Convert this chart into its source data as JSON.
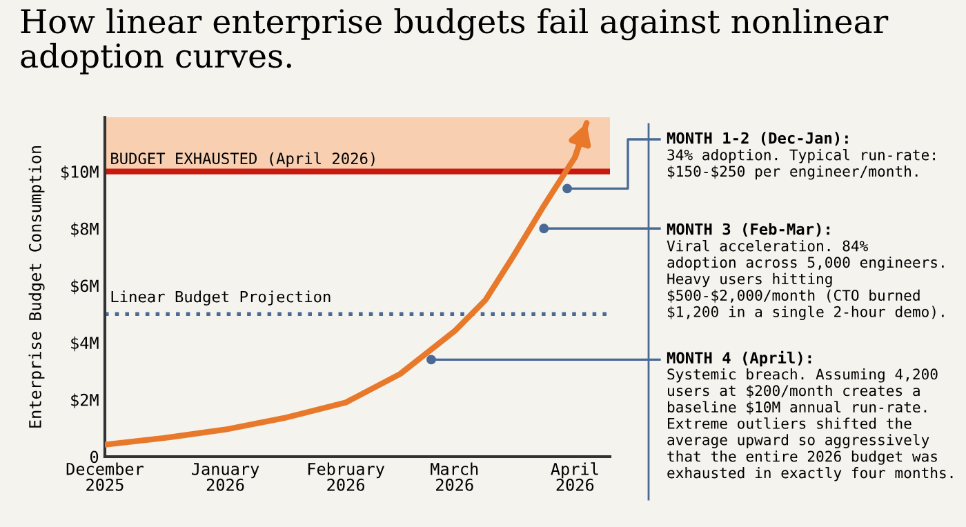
{
  "chart_data": {
    "type": "line",
    "title": "How linear enterprise budgets fail against nonlinear\nadoption curves.",
    "ylabel": "Enterprise Budget Consumption",
    "series": [
      {
        "color": "#e8782a",
        "x": [
          "2025-12-01",
          "2025-12-16",
          "2026-01-01",
          "2026-01-16",
          "2026-02-01",
          "2026-02-15",
          "2026-03-01",
          "2026-03-09",
          "2026-03-16",
          "2026-03-24",
          "2026-04-01",
          "2026-04-04"
        ],
        "values": [
          0.42,
          0.65,
          0.95,
          1.35,
          1.9,
          2.9,
          4.4,
          5.5,
          7.0,
          8.8,
          10.5,
          11.7
        ]
      }
    ],
    "xlim": [
      "2025-12-01",
      "2026-04-10"
    ],
    "xticks": [
      {
        "value": "2025-12-01",
        "label": "December\n2025"
      },
      {
        "value": "2026-01-01",
        "label": "January\n2026"
      },
      {
        "value": "2026-02-01",
        "label": "February\n2026"
      },
      {
        "value": "2026-03-01",
        "label": "March\n2026"
      },
      {
        "value": "2026-04-01",
        "label": "April\n2026"
      }
    ],
    "ylim": [
      0,
      11.9
    ],
    "yticks": [
      0,
      {
        "value": 2,
        "label": "$2M"
      },
      {
        "value": 4,
        "label": "$4M"
      },
      {
        "value": 6,
        "label": "$6M"
      },
      {
        "value": 8,
        "label": "$8M"
      },
      {
        "value": 10,
        "label": "$10M"
      }
    ],
    "ref_lines": [
      {
        "axis": "y",
        "value": 10,
        "color": "#c8190f",
        "line_style": "solid"
      },
      {
        "axis": "y",
        "value": 5,
        "label": "Linear Budget Projection",
        "color": "#4a6a96",
        "line_style": "dotted"
      }
    ],
    "bands": [
      {
        "axis": "y",
        "from": 10,
        "to": 11.9,
        "label": "BUDGET EXHAUSTED (April 2026)",
        "color": "#f9cfb2"
      }
    ],
    "annotations": [
      {
        "text": "MONTH 1-2 (Dec-Jan):\n34% adoption. Typical run-rate:\n$150-$250 per engineer/month.",
        "x": "2026-03-30",
        "y": 9.4
      },
      {
        "text": "MONTH 3 (Feb-Mar):\nViral acceleration. 84%\nadoption across 5,000 engineers.\nHeavy users hitting\n$500-$2,000/month (CTO burned\n$1,200 in a single 2-hour demo).",
        "x": "2026-03-24",
        "y": 8.0
      },
      {
        "text": "MONTH 4 (April):\nSystemic breach. Assuming 4,200\nusers at $200/month creates a\nbaseline $10M annual run-rate.\nExtreme outliers shifted the\naverage upward so aggressively\nthat the entire 2026 budget was\nexhausted in exactly four months.",
        "x": "2026-02-23",
        "y": 3.4
      }
    ],
    "marker": "none",
    "line_style": "solid",
    "grid": false,
    "legend": false
  }
}
